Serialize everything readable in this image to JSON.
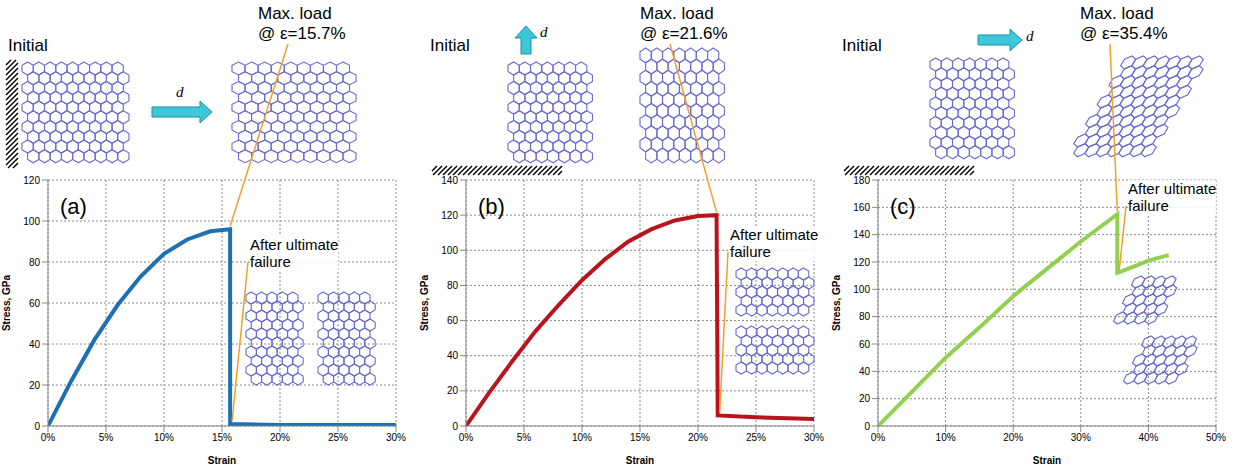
{
  "chart_data": [
    {
      "type": "line",
      "panel_label": "(a)",
      "x_label": "Strain",
      "y_label": "Stress, GPa",
      "color": "#1f6fb4",
      "grid": true,
      "xlim": [
        0,
        30
      ],
      "xticks": [
        {
          "value": 0,
          "label": "0%"
        },
        {
          "value": 5,
          "label": "5%"
        },
        {
          "value": 10,
          "label": "10%"
        },
        {
          "value": 15,
          "label": "15%"
        },
        {
          "value": 20,
          "label": "20%"
        },
        {
          "value": 25,
          "label": "25%"
        },
        {
          "value": 30,
          "label": "30%"
        }
      ],
      "ylim": [
        0,
        120
      ],
      "yticks": [
        0,
        20,
        40,
        60,
        80,
        100,
        120
      ],
      "x": [
        0,
        2,
        4,
        6,
        8,
        10,
        12,
        14,
        15.7,
        15.7,
        20,
        30
      ],
      "values": [
        0,
        22,
        42,
        59,
        73,
        84,
        91,
        95,
        96,
        1,
        0.5,
        0.5
      ],
      "annotations": {
        "initial": "Initial",
        "load": "d",
        "max_load": [
          "Max. load",
          "@ ε=15.7%"
        ],
        "failure": [
          "After ultimate",
          "failure"
        ]
      }
    },
    {
      "type": "line",
      "panel_label": "(b)",
      "x_label": "Strain",
      "y_label": "Stress, GPa",
      "color": "#b8141e",
      "grid": true,
      "xlim": [
        0,
        30
      ],
      "xticks": [
        {
          "value": 0,
          "label": "0%"
        },
        {
          "value": 5,
          "label": "5%"
        },
        {
          "value": 10,
          "label": "10%"
        },
        {
          "value": 15,
          "label": "15%"
        },
        {
          "value": 20,
          "label": "20%"
        },
        {
          "value": 25,
          "label": "25%"
        },
        {
          "value": 30,
          "label": "30%"
        }
      ],
      "ylim": [
        0,
        140
      ],
      "yticks": [
        0,
        20,
        40,
        60,
        80,
        100,
        120,
        140
      ],
      "x": [
        0,
        2,
        4,
        6,
        8,
        10,
        12,
        14,
        16,
        18,
        20,
        21.6,
        21.7,
        25,
        30
      ],
      "values": [
        0,
        19,
        37,
        54,
        69,
        83,
        95,
        105,
        112,
        117,
        119.5,
        120,
        6,
        5,
        4
      ],
      "annotations": {
        "initial": "Initial",
        "load": "d",
        "max_load": [
          "Max. load",
          "@ ε=21.6%"
        ],
        "failure": [
          "After ultimate",
          "failure"
        ]
      }
    },
    {
      "type": "line",
      "panel_label": "(c)",
      "x_label": "Strain",
      "y_label": "Stress, GPa",
      "color": "#92d050",
      "grid": true,
      "xlim": [
        0,
        50
      ],
      "xticks": [
        {
          "value": 0,
          "label": "0%"
        },
        {
          "value": 10,
          "label": "10%"
        },
        {
          "value": 20,
          "label": "20%"
        },
        {
          "value": 30,
          "label": "30%"
        },
        {
          "value": 40,
          "label": "40%"
        },
        {
          "value": 50,
          "label": "50%"
        }
      ],
      "ylim": [
        0,
        180
      ],
      "yticks": [
        0,
        20,
        40,
        60,
        80,
        100,
        120,
        140,
        160,
        180
      ],
      "x": [
        0,
        5,
        10,
        15,
        20,
        25,
        30,
        35.4,
        35.4,
        38,
        40,
        43
      ],
      "values": [
        0,
        25,
        50,
        72,
        95,
        115,
        135,
        155,
        112,
        117,
        121,
        125
      ],
      "annotations": {
        "initial": "Initial",
        "load": "d",
        "max_load": [
          "Max. load",
          "@ ε=35.4%"
        ],
        "failure": [
          "After ultimate",
          "failure"
        ]
      }
    }
  ]
}
